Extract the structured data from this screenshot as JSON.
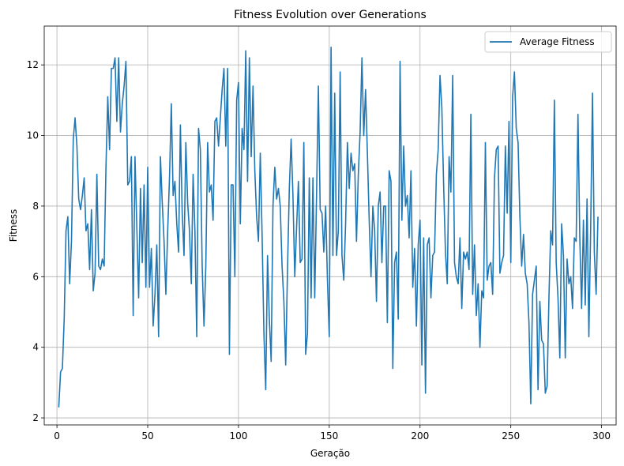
{
  "chart_data": {
    "type": "line",
    "title": "Fitness Evolution over Generations",
    "xlabel": "Geração",
    "ylabel": "Fitness",
    "xlim": [
      -7,
      308
    ],
    "ylim": [
      1.8,
      13.1
    ],
    "xticks": [
      0,
      50,
      100,
      150,
      200,
      250,
      300
    ],
    "yticks": [
      2,
      4,
      6,
      8,
      10,
      12
    ],
    "grid": true,
    "legend_position": "top-right",
    "series": [
      {
        "name": "Average Fitness",
        "color": "#1f77b4",
        "x_start": 1,
        "x_step": 1,
        "values": [
          2.3,
          3.3,
          3.4,
          4.8,
          7.3,
          7.7,
          5.8,
          7.0,
          9.9,
          10.5,
          9.7,
          8.2,
          7.9,
          8.3,
          8.8,
          7.3,
          7.5,
          6.2,
          7.9,
          5.6,
          6.1,
          8.9,
          6.3,
          6.2,
          6.5,
          6.3,
          9.1,
          11.1,
          9.6,
          11.9,
          11.9,
          12.2,
          10.4,
          12.2,
          10.1,
          10.9,
          11.4,
          12.1,
          8.6,
          8.7,
          9.4,
          4.9,
          9.4,
          7.4,
          5.4,
          8.5,
          6.4,
          8.6,
          5.7,
          9.1,
          5.7,
          6.8,
          4.6,
          5.5,
          6.9,
          4.3,
          9.4,
          8.1,
          7.0,
          5.5,
          7.3,
          8.8,
          10.9,
          8.3,
          8.7,
          7.5,
          6.7,
          10.3,
          7.8,
          6.6,
          9.8,
          8.1,
          7.3,
          5.8,
          8.9,
          7.3,
          4.3,
          10.2,
          9.6,
          6.3,
          4.6,
          6.3,
          9.8,
          8.4,
          8.6,
          7.6,
          10.4,
          10.5,
          9.7,
          10.5,
          11.3,
          11.9,
          9.7,
          11.9,
          3.8,
          8.6,
          8.6,
          6.0,
          11.0,
          11.5,
          7.5,
          10.2,
          9.6,
          12.4,
          8.7,
          12.2,
          9.4,
          11.4,
          9.0,
          7.7,
          7.0,
          9.5,
          7.2,
          4.4,
          2.8,
          6.6,
          4.8,
          3.6,
          8.0,
          9.1,
          8.2,
          8.5,
          8.0,
          6.3,
          5.3,
          3.5,
          6.2,
          8.5,
          9.9,
          8.3,
          6.0,
          7.4,
          8.7,
          6.4,
          6.5,
          9.8,
          3.8,
          4.4,
          8.8,
          5.4,
          8.8,
          5.4,
          8.3,
          11.4,
          7.9,
          7.8,
          6.7,
          8.0,
          5.9,
          4.3,
          12.5,
          6.6,
          11.2,
          6.6,
          7.3,
          11.8,
          6.6,
          5.9,
          7.5,
          9.8,
          8.5,
          9.5,
          9.0,
          9.2,
          7.0,
          8.9,
          10.1,
          12.2,
          10.0,
          11.3,
          9.5,
          7.6,
          6.0,
          8.0,
          7.3,
          5.3,
          8.0,
          8.4,
          6.4,
          8.0,
          8.0,
          4.7,
          9.0,
          8.7,
          3.4,
          6.4,
          6.7,
          4.8,
          12.1,
          7.6,
          9.7,
          8.0,
          8.3,
          7.1,
          9.0,
          5.7,
          6.8,
          4.6,
          6.9,
          7.6,
          3.5,
          7.1,
          2.7,
          6.9,
          7.1,
          5.4,
          6.6,
          6.7,
          8.9,
          9.6,
          11.7,
          10.8,
          8.6,
          6.7,
          5.8,
          9.4,
          8.4,
          11.7,
          6.4,
          6.0,
          5.8,
          7.1,
          5.1,
          6.7,
          6.5,
          6.7,
          6.2,
          10.6,
          5.5,
          6.9,
          4.9,
          5.8,
          4.0,
          5.6,
          5.4,
          9.8,
          5.9,
          6.3,
          6.4,
          5.5,
          8.8,
          9.6,
          9.7,
          6.1,
          6.4,
          6.6,
          9.7,
          7.8,
          10.4,
          6.4,
          11.1,
          11.8,
          10.2,
          9.8,
          7.7,
          6.3,
          7.2,
          6.1,
          5.8,
          4.7,
          2.4,
          5.5,
          5.9,
          6.3,
          2.8,
          5.3,
          4.2,
          4.1,
          2.7,
          2.9,
          5.4,
          7.3,
          6.9,
          11.0,
          6.4,
          5.4,
          3.7,
          7.5,
          6.6,
          3.7,
          6.5,
          5.8,
          6.0,
          5.1,
          7.1,
          7.0,
          10.6,
          7.1,
          5.1,
          7.6,
          5.2,
          8.2,
          4.3,
          7.4,
          11.2,
          6.7,
          5.5,
          7.7
        ]
      }
    ]
  }
}
